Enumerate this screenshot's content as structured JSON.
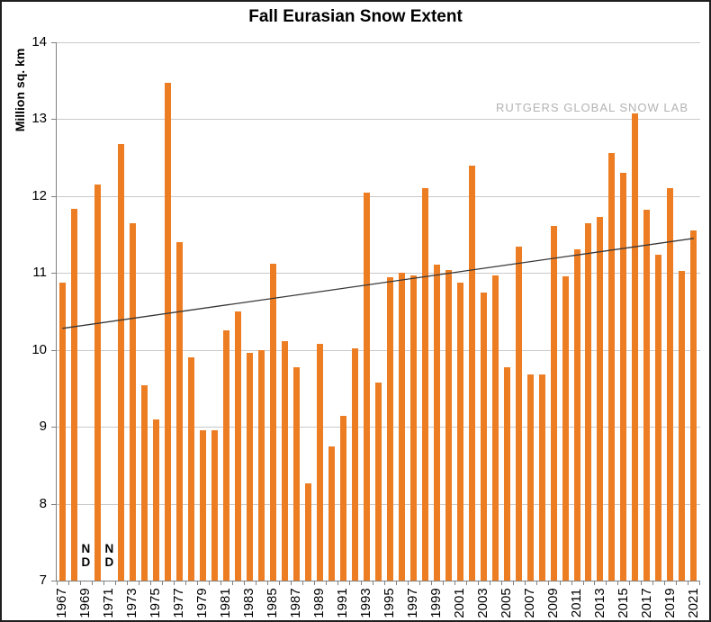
{
  "chart_data": {
    "type": "bar",
    "title": "Fall Eurasian Snow Extent",
    "ylabel": "Million sq. km",
    "xlabel": "",
    "watermark": "RUTGERS GLOBAL SNOW LAB",
    "ylim": [
      7,
      14
    ],
    "yticks": [
      7,
      8,
      9,
      10,
      11,
      12,
      13,
      14
    ],
    "grid": true,
    "legend": false,
    "bar_color": "#ED7D23",
    "trend_color": "#383838",
    "categories": [
      1967,
      1968,
      1969,
      1970,
      1971,
      1972,
      1973,
      1974,
      1975,
      1976,
      1977,
      1978,
      1979,
      1980,
      1981,
      1982,
      1983,
      1984,
      1985,
      1986,
      1987,
      1988,
      1989,
      1990,
      1991,
      1992,
      1993,
      1994,
      1995,
      1996,
      1997,
      1998,
      1999,
      2000,
      2001,
      2002,
      2003,
      2004,
      2005,
      2006,
      2007,
      2008,
      2009,
      2010,
      2011,
      2012,
      2013,
      2014,
      2015,
      2016,
      2017,
      2018,
      2019,
      2020,
      2021
    ],
    "values": [
      10.87,
      11.84,
      null,
      12.15,
      null,
      12.68,
      11.65,
      9.54,
      9.1,
      13.47,
      11.4,
      9.9,
      8.95,
      8.95,
      10.26,
      10.5,
      9.96,
      10.0,
      11.12,
      10.12,
      9.77,
      8.26,
      10.08,
      8.74,
      9.14,
      10.02,
      12.05,
      9.57,
      10.95,
      11.0,
      10.97,
      12.11,
      11.11,
      11.04,
      10.87,
      12.4,
      10.75,
      10.97,
      9.78,
      11.34,
      9.68,
      9.68,
      11.61,
      10.96,
      11.31,
      11.65,
      11.73,
      12.56,
      12.3,
      13.07,
      11.82,
      11.24,
      12.1,
      11.03,
      11.55
    ],
    "no_data_years": [
      1969,
      1971
    ],
    "no_data_marker_lines": [
      "N",
      "D"
    ],
    "xtick_labels": [
      "1967",
      "1969",
      "1971",
      "1973",
      "1975",
      "1977",
      "1979",
      "1981",
      "1983",
      "1985",
      "1987",
      "1989",
      "1991",
      "1993",
      "1995",
      "1997",
      "1999",
      "2001",
      "2003",
      "2005",
      "2007",
      "2009",
      "2011",
      "2013",
      "2015",
      "2017",
      "2019",
      "2021"
    ],
    "trendline": {
      "start_year": 1967,
      "start_value": 10.28,
      "end_year": 2021,
      "end_value": 11.45
    }
  }
}
